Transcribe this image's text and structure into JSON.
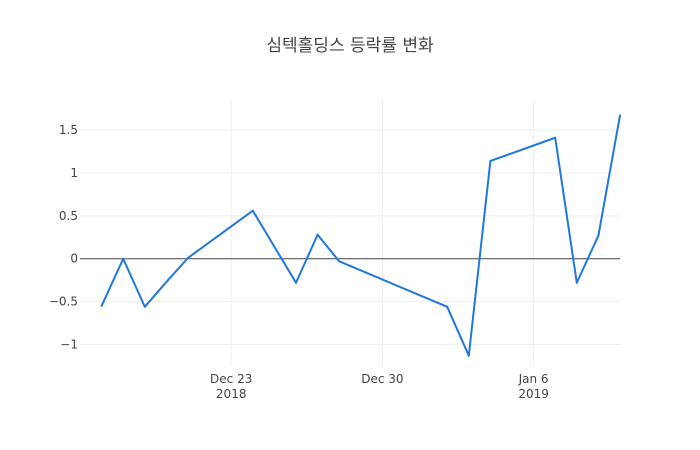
{
  "chart_data": {
    "type": "line",
    "title": "심텍홀딩스 등락률 변화",
    "xlabel": "",
    "ylabel": "",
    "x": [
      "2018-12-17",
      "2018-12-18",
      "2018-12-19",
      "2018-12-20",
      "2018-12-21",
      "2018-12-24",
      "2018-12-26",
      "2018-12-27",
      "2018-12-28",
      "2019-01-02",
      "2019-01-03",
      "2019-01-04",
      "2019-01-07",
      "2019-01-08",
      "2019-01-09",
      "2019-01-10"
    ],
    "series": [
      {
        "values": [
          -0.55,
          0.0,
          -0.56,
          -0.27,
          0.01,
          0.56,
          -0.28,
          0.28,
          -0.03,
          -0.56,
          -1.13,
          1.14,
          1.41,
          -0.28,
          0.27,
          1.67
        ]
      }
    ],
    "xlim": [
      "2018-12-16",
      "2019-01-10"
    ],
    "ylim": [
      -1.25,
      1.85
    ],
    "y_ticks": [
      {
        "value": 1.5,
        "label": "1.5"
      },
      {
        "value": 1,
        "label": "1"
      },
      {
        "value": 0.5,
        "label": "0.5"
      },
      {
        "value": 0,
        "label": "0"
      },
      {
        "value": -0.5,
        "label": "−0.5"
      },
      {
        "value": -1,
        "label": "−1"
      }
    ],
    "x_ticks": [
      {
        "date": "2018-12-23",
        "label": "Dec 23",
        "year": "2018"
      },
      {
        "date": "2018-12-30",
        "label": "Dec 30",
        "year": ""
      },
      {
        "date": "2019-01-06",
        "label": "Jan 6",
        "year": "2019"
      }
    ],
    "grid": true,
    "line_color": "#1f77e0"
  }
}
